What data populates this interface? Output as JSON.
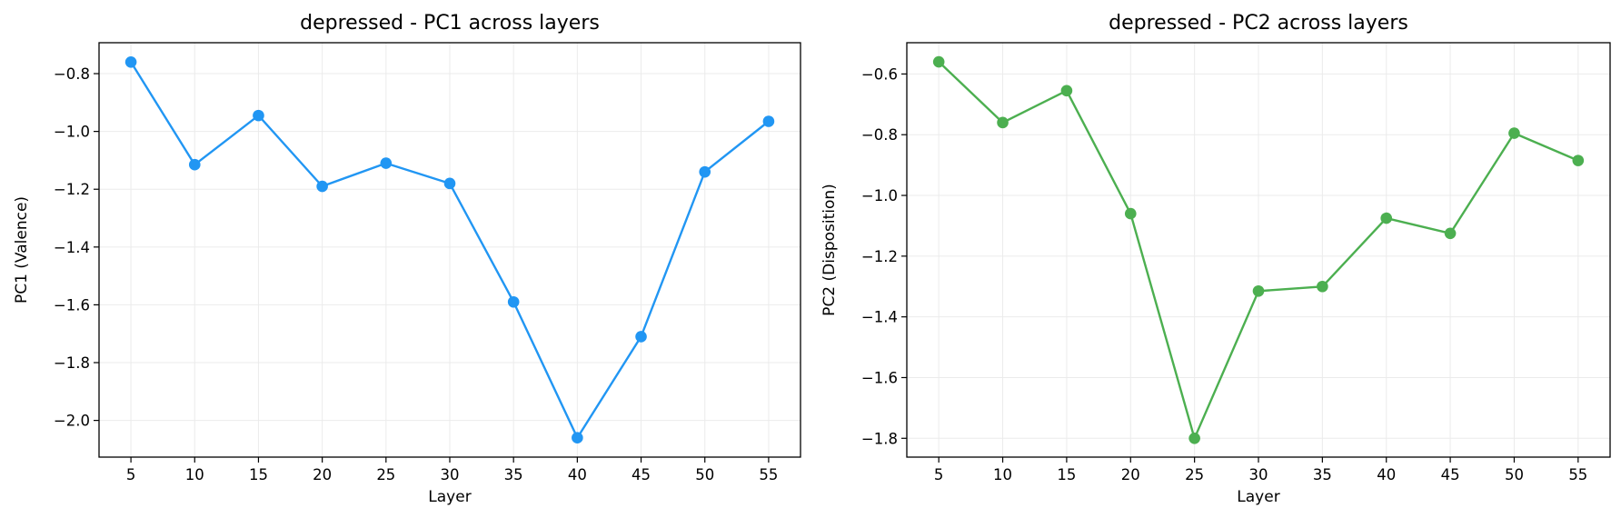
{
  "chart_data": [
    {
      "type": "line",
      "title": "depressed - PC1 across layers",
      "xlabel": "Layer",
      "ylabel": "PC1 (Valence)",
      "x": [
        5,
        10,
        15,
        20,
        25,
        30,
        35,
        40,
        45,
        50,
        55
      ],
      "x_ticks": [
        "5",
        "10",
        "15",
        "20",
        "25",
        "30",
        "35",
        "40",
        "45",
        "50",
        "55"
      ],
      "xlim": [
        2.5,
        57.5
      ],
      "ylim": [
        -2.127,
        -0.693
      ],
      "y_ticks": [
        -0.8,
        -1.0,
        -1.2,
        -1.4,
        -1.6,
        -1.8,
        -2.0
      ],
      "y_tick_labels": [
        "−0.8",
        "−1.0",
        "−1.2",
        "−1.4",
        "−1.6",
        "−1.8",
        "−2.0"
      ],
      "grid": true,
      "color": "#2196F3",
      "series": [
        {
          "values": [
            -0.76,
            -1.115,
            -0.945,
            -1.19,
            -1.11,
            -1.18,
            -1.59,
            -2.06,
            -1.71,
            -1.14,
            -0.965
          ]
        }
      ]
    },
    {
      "type": "line",
      "title": "depressed - PC2 across layers",
      "xlabel": "Layer",
      "ylabel": "PC2 (Disposition)",
      "x": [
        5,
        10,
        15,
        20,
        25,
        30,
        35,
        40,
        45,
        50,
        55
      ],
      "x_ticks": [
        "5",
        "10",
        "15",
        "20",
        "25",
        "30",
        "35",
        "40",
        "45",
        "50",
        "55"
      ],
      "xlim": [
        2.5,
        57.5
      ],
      "ylim": [
        -1.862,
        -0.497
      ],
      "y_ticks": [
        -0.6,
        -0.8,
        -1.0,
        -1.2,
        -1.4,
        -1.6,
        -1.8
      ],
      "y_tick_labels": [
        "−0.6",
        "−0.8",
        "−1.0",
        "−1.2",
        "−1.4",
        "−1.6",
        "−1.8"
      ],
      "grid": true,
      "color": "#4CAF50",
      "series": [
        {
          "values": [
            -0.56,
            -0.76,
            -0.655,
            -1.06,
            -1.8,
            -1.315,
            -1.3,
            -1.075,
            -1.125,
            -0.795,
            -0.885
          ]
        }
      ]
    }
  ]
}
